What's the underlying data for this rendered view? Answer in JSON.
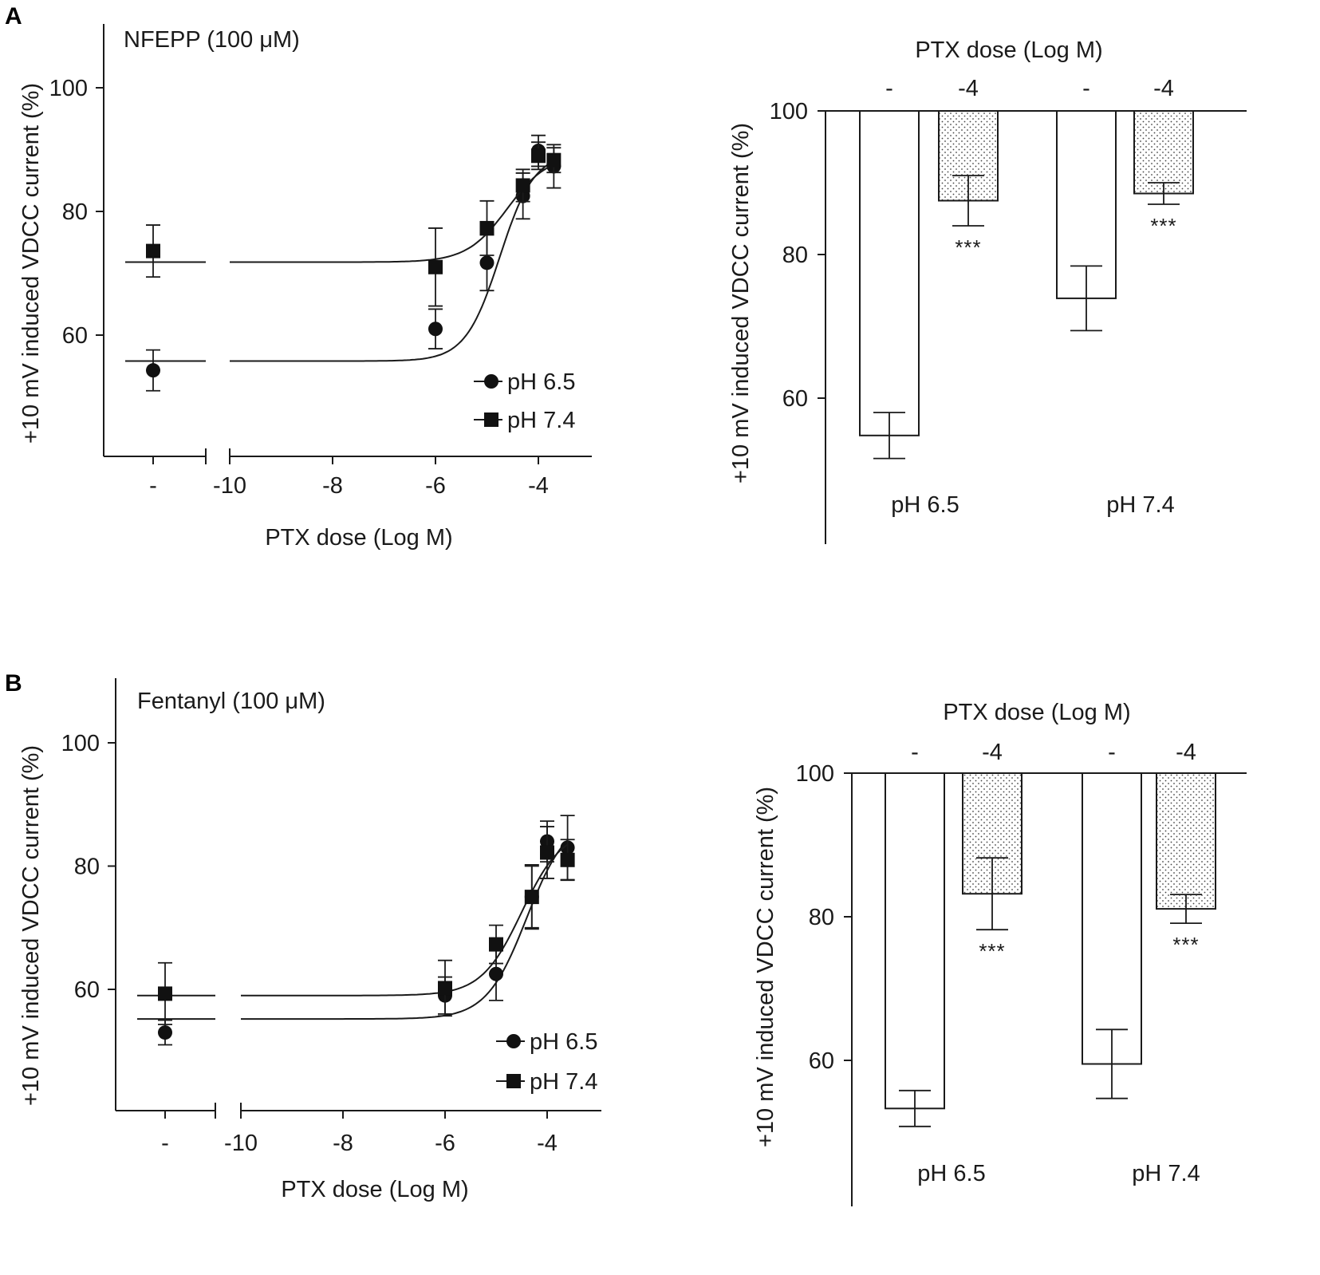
{
  "panels": [
    {
      "letter": "A",
      "dose_response": {
        "type": "scatter",
        "title": "NFEPP (100 μM)",
        "xlabel": "PTX dose (Log M)",
        "ylabel": "+10 mV induced VDCC current (%)",
        "xticks": [
          "-",
          "-10",
          "-8",
          "-6",
          "-4"
        ],
        "yticks": [
          60,
          80,
          100
        ],
        "ylim": [
          41,
          111
        ],
        "xlim": [
          -10.15,
          -3.0
        ],
        "legend": [
          "pH 6.5",
          "pH 7.4"
        ],
        "series": [
          {
            "name": "pH 6.5",
            "marker": "circle",
            "control": {
              "y": 54.3,
              "err": 3.3
            },
            "points": [
              {
                "x": -6,
                "y": 61,
                "err": 3.2
              },
              {
                "x": -5,
                "y": 71.7,
                "err": 4.5
              },
              {
                "x": -4.3,
                "y": 82.5,
                "err": 3.7
              },
              {
                "x": -4,
                "y": 89.8,
                "err": 2.5
              },
              {
                "x": -3.7,
                "y": 87.3,
                "err": 3.5
              }
            ],
            "fit": {
              "bottom": 55.8,
              "top": 89.5,
              "logec50": -4.75,
              "hill": 1.3
            }
          },
          {
            "name": "pH 7.4",
            "marker": "square",
            "control": {
              "y": 73.6,
              "err": 4.2
            },
            "points": [
              {
                "x": -6,
                "y": 71,
                "err": 6.3
              },
              {
                "x": -5,
                "y": 77.3,
                "err": 4.4
              },
              {
                "x": -4.3,
                "y": 84.2,
                "err": 2.6
              },
              {
                "x": -4,
                "y": 89,
                "err": 2.2
              },
              {
                "x": -3.7,
                "y": 88.3,
                "err": 2.0
              }
            ],
            "fit": {
              "bottom": 71.8,
              "top": 89.2,
              "logec50": -4.6,
              "hill": 1.1
            }
          }
        ]
      },
      "bars": {
        "type": "bar",
        "xlabel": "PTX dose (Log M)",
        "ylabel": "+10 mV induced VDCC current (%)",
        "dose_labels": [
          "-",
          "-4",
          "-",
          "-4"
        ],
        "categories": [
          "pH 6.5",
          "pH 7.4"
        ],
        "yticks": [
          60,
          80,
          100
        ],
        "ylim": [
          40,
          100
        ],
        "values": [
          54.8,
          87.5,
          73.9,
          88.5
        ],
        "errors": [
          3.2,
          3.5,
          4.5,
          1.5
        ],
        "significance": [
          "",
          "***",
          "",
          "***"
        ]
      }
    },
    {
      "letter": "B",
      "dose_response": {
        "type": "scatter",
        "title": "Fentanyl (100 μM)",
        "xlabel": "PTX dose (Log M)",
        "ylabel": "+10 mV induced VDCC current (%)",
        "xticks": [
          "-",
          "-10",
          "-8",
          "-6",
          "-4"
        ],
        "yticks": [
          60,
          80,
          100
        ],
        "ylim": [
          41,
          111
        ],
        "xlim": [
          -10.15,
          -3.0
        ],
        "legend": [
          "pH 6.5",
          "pH 7.4"
        ],
        "series": [
          {
            "name": "pH 6.5",
            "marker": "circle",
            "control": {
              "y": 53,
              "err": 2.0
            },
            "points": [
              {
                "x": -6,
                "y": 59,
                "err": 3.0
              },
              {
                "x": -5,
                "y": 62.5,
                "err": 4.3
              },
              {
                "x": -4.3,
                "y": 75,
                "err": 5.2
              },
              {
                "x": -4,
                "y": 84,
                "err": 3.3
              },
              {
                "x": -3.6,
                "y": 83,
                "err": 5.2
              }
            ],
            "fit": {
              "bottom": 55.2,
              "top": 88,
              "logec50": -4.4,
              "hill": 1.1
            }
          },
          {
            "name": "pH 7.4",
            "marker": "square",
            "control": {
              "y": 59.3,
              "err": 5.0
            },
            "points": [
              {
                "x": -6,
                "y": 60.2,
                "err": 4.5
              },
              {
                "x": -5,
                "y": 67.3,
                "err": 3.1
              },
              {
                "x": -4.3,
                "y": 75,
                "err": 5.0
              },
              {
                "x": -4,
                "y": 82.2,
                "err": 4.2
              },
              {
                "x": -3.6,
                "y": 81,
                "err": 3.3
              }
            ],
            "fit": {
              "bottom": 59,
              "top": 86,
              "logec50": -4.5,
              "hill": 1.1
            }
          }
        ]
      },
      "bars": {
        "type": "bar",
        "xlabel": "PTX dose (Log M)",
        "ylabel": "+10 mV induced VDCC current (%)",
        "dose_labels": [
          "-",
          "-4",
          "-",
          "-4"
        ],
        "categories": [
          "pH 6.5",
          "pH 7.4"
        ],
        "yticks": [
          60,
          80,
          100
        ],
        "ylim": [
          40,
          100
        ],
        "values": [
          53.3,
          83.2,
          59.5,
          81.1
        ],
        "errors": [
          2.5,
          5.0,
          4.8,
          2.0
        ],
        "significance": [
          "",
          "***",
          "",
          "***"
        ]
      }
    }
  ]
}
